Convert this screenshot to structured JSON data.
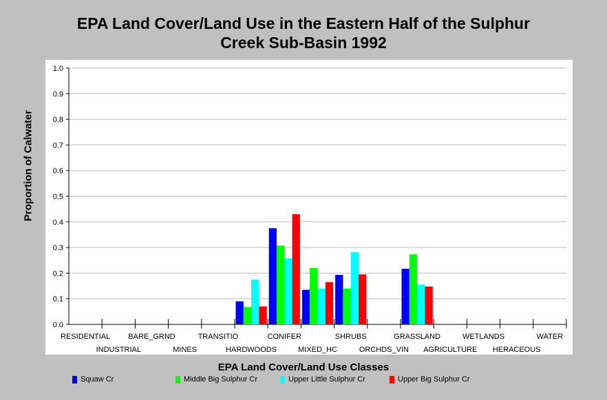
{
  "chart_data": {
    "type": "bar",
    "title_lines": [
      "EPA Land Cover/Land Use in the Eastern Half of the Sulphur",
      "Creek Sub-Basin 1992"
    ],
    "xlabel": "EPA Land Cover/Land Use Classes",
    "ylabel": "Proportion of Calwater",
    "ylim": [
      0,
      1.0
    ],
    "yticks": [
      "0.0",
      "0.1",
      "0.2",
      "0.3",
      "0.4",
      "0.5",
      "0.6",
      "0.7",
      "0.8",
      "0.9",
      "1.0"
    ],
    "grid": true,
    "legend_position": "bottom",
    "categories": [
      "RESIDENTIAL",
      "INDUSTRIAL",
      "BARE_GRND",
      "MINES",
      "TRANSITIO",
      "HARDWOODS",
      "CONIFER",
      "MIXED_HC",
      "SHRUBS",
      "ORCHDS_VIN",
      "GRASSLAND",
      "AGRICULTURE",
      "WETLANDS",
      "HERACEOUS",
      "WATER"
    ],
    "series": [
      {
        "name": "Squaw Cr",
        "color": "#0000ff",
        "values": [
          0,
          0,
          0,
          0,
          0,
          0.09,
          0.375,
          0.135,
          0.193,
          0,
          0.217,
          0,
          0,
          0,
          0
        ]
      },
      {
        "name": "Middle Big Sulphur Cr",
        "color": "#00ff00",
        "values": [
          0,
          0,
          0,
          0,
          0,
          0.068,
          0.307,
          0.22,
          0.14,
          0,
          0.273,
          0,
          0,
          0,
          0
        ]
      },
      {
        "name": "Upper Little Sulphur Cr",
        "color": "#00ffff",
        "values": [
          0,
          0,
          0,
          0,
          0,
          0.175,
          0.258,
          0.14,
          0.282,
          0,
          0.155,
          0,
          0,
          0,
          0
        ]
      },
      {
        "name": "Upper Big Sulphur Cr",
        "color": "#ff0000",
        "values": [
          0,
          0,
          0,
          0,
          0,
          0.07,
          0.43,
          0.165,
          0.195,
          0,
          0.148,
          0,
          0,
          0,
          0
        ]
      }
    ]
  }
}
